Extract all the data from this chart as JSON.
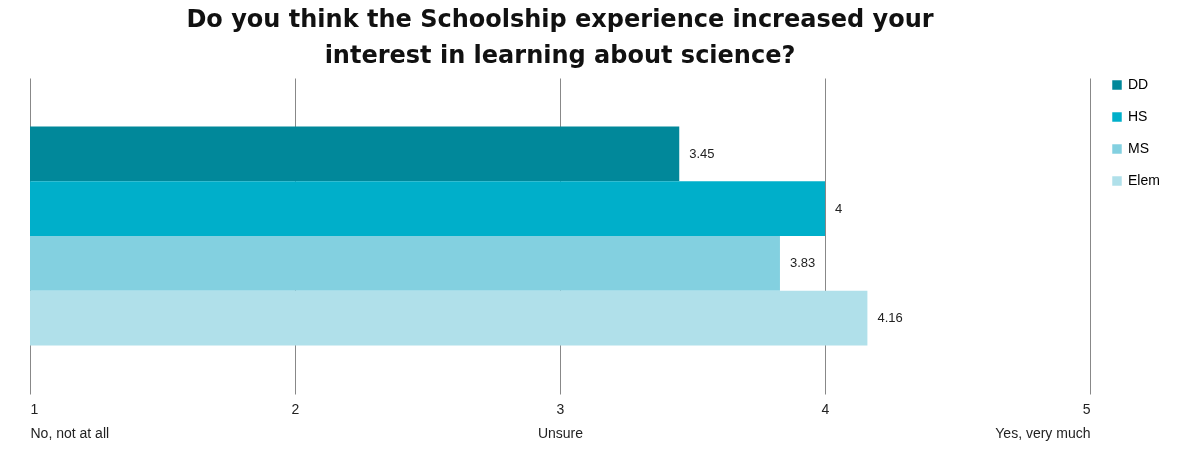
{
  "chart_data": {
    "type": "bar",
    "orientation": "horizontal",
    "title": "Do you think the Schoolship experience increased your\ninterest in learning about science?",
    "categories": [
      null
    ],
    "series": [
      {
        "name": "DD",
        "color": "#01889a",
        "values": [
          3.45
        ]
      },
      {
        "name": "HS",
        "color": "#00afca",
        "values": [
          4
        ]
      },
      {
        "name": "MS",
        "color": "#83d0e0",
        "values": [
          3.83
        ]
      },
      {
        "name": "Elem",
        "color": "#b0e0ea",
        "values": [
          4.16
        ]
      }
    ],
    "xlim": [
      1,
      5
    ],
    "xticks": [
      {
        "value": 1,
        "label": "1\nNo, not at all"
      },
      2,
      {
        "value": 3,
        "label": "3\nUnsure"
      },
      4,
      {
        "value": 5,
        "label": "5\nYes, very much"
      }
    ],
    "grid": "x",
    "legend": "right",
    "data_labels": true
  }
}
